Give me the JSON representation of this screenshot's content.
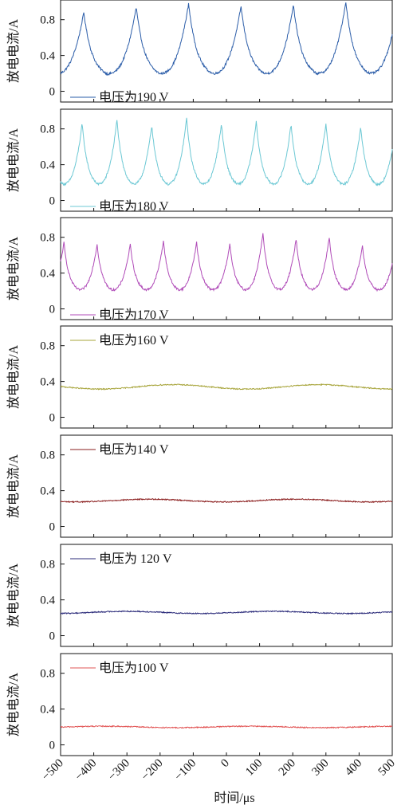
{
  "chart_data": {
    "type": "line",
    "xlabel": "时间/μs",
    "ylabel": "放电电流/A",
    "xlim": [
      -500,
      500
    ],
    "xticks": [
      -500,
      -400,
      -300,
      -200,
      -100,
      0,
      100,
      200,
      300,
      400,
      500
    ],
    "xtick_labels": [
      "−500",
      "−400",
      "−300",
      "−200",
      "−100",
      "0",
      "100",
      "200",
      "300",
      "400",
      "500"
    ],
    "ylim": [
      -0.12,
      1.02
    ],
    "yticks": [
      0,
      0.4,
      0.8
    ],
    "ytick_labels": [
      "0",
      "0.4",
      "0.8"
    ],
    "panels": [
      {
        "legend": "电压为190 V",
        "color": "#2a5ca8",
        "period_us": 158,
        "first_peak_us": -430,
        "peak_value": 0.92,
        "trough_value": 0.15,
        "peaks_x": [
          -430,
          -272,
          -114,
          44,
          202,
          360
        ],
        "peaks_y": [
          0.88,
          0.94,
          0.98,
          0.95,
          0.96,
          1.0
        ]
      },
      {
        "legend": "电压为180 V",
        "color": "#6cc8d4",
        "period_us": 105,
        "first_peak_us": -435,
        "peak_value": 0.88,
        "trough_value": 0.14,
        "peaks_x": [
          -435,
          -330,
          -225,
          -120,
          -15,
          90,
          195,
          300,
          405
        ],
        "peaks_y": [
          0.86,
          0.9,
          0.84,
          0.92,
          0.86,
          0.88,
          0.85,
          0.86,
          0.82
        ]
      },
      {
        "legend": "电压为170 V",
        "color": "#b04bb8",
        "period_us": 100,
        "first_peak_us": -490,
        "peak_value": 0.75,
        "trough_value": 0.18,
        "peaks_x": [
          -490,
          -390,
          -290,
          -190,
          -90,
          10,
          110,
          210,
          310,
          410
        ],
        "peaks_y": [
          0.74,
          0.72,
          0.72,
          0.76,
          0.74,
          0.72,
          0.84,
          0.78,
          0.8,
          0.7
        ]
      },
      {
        "legend": "电压为160 V",
        "color": "#a7a43a",
        "baseline": 0.34,
        "amplitude": 0.025
      },
      {
        "legend": "电压为140 V",
        "color": "#8a1c1c",
        "baseline": 0.29,
        "amplitude": 0.015
      },
      {
        "legend": "电压为 120 V",
        "color": "#2b2b7a",
        "baseline": 0.26,
        "amplitude": 0.012
      },
      {
        "legend": "电压为100 V",
        "color": "#e25555",
        "baseline": 0.2,
        "amplitude": 0.008
      }
    ]
  }
}
